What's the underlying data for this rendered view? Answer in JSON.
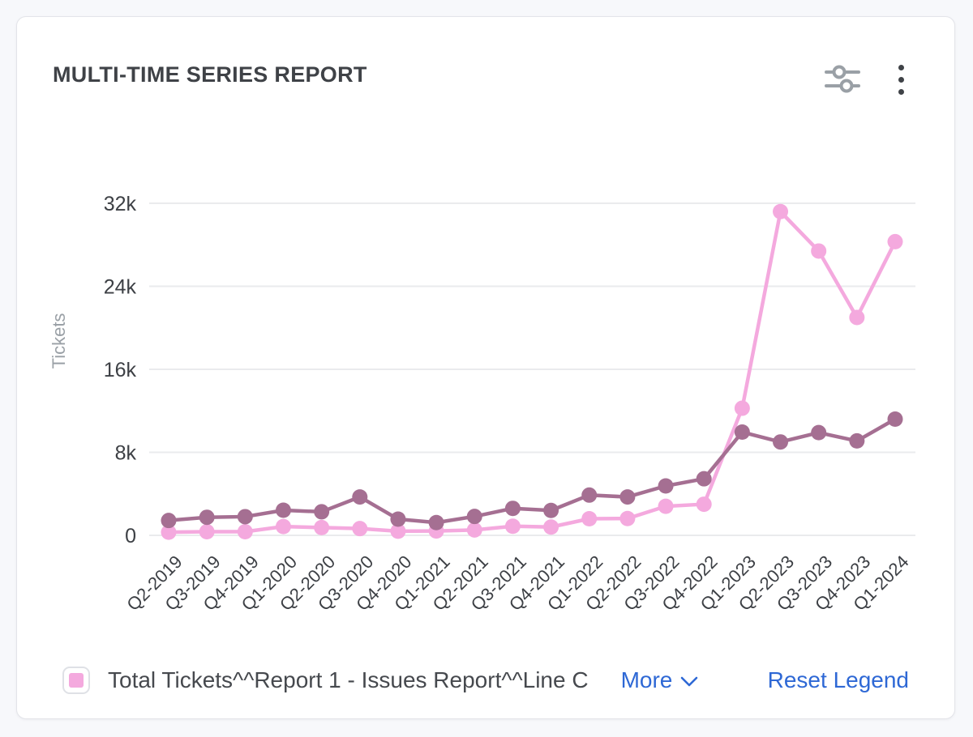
{
  "card": {
    "title": "MULTI-TIME SERIES REPORT"
  },
  "legend": {
    "items": [
      {
        "label": "Total Tickets^^Report 1 - Issues Report^^Line C",
        "swatch_color": "#f4a9de"
      }
    ],
    "more_label": "More",
    "reset_label": "Reset Legend",
    "link_color": "#2e68d5"
  },
  "chart_data": {
    "type": "line",
    "title": "MULTI-TIME SERIES REPORT",
    "xlabel": "",
    "ylabel": "Tickets",
    "ylim": [
      0,
      32000
    ],
    "grid": true,
    "legend_position": "bottom",
    "yticks": [
      {
        "value": 0,
        "label": "0"
      },
      {
        "value": 8000,
        "label": "8k"
      },
      {
        "value": 16000,
        "label": "16k"
      },
      {
        "value": 24000,
        "label": "24k"
      },
      {
        "value": 32000,
        "label": "32k"
      }
    ],
    "categories": [
      "Q2-2019",
      "Q3-2019",
      "Q4-2019",
      "Q1-2020",
      "Q2-2020",
      "Q3-2020",
      "Q4-2020",
      "Q1-2021",
      "Q2-2021",
      "Q3-2021",
      "Q4-2021",
      "Q1-2022",
      "Q2-2022",
      "Q3-2022",
      "Q4-2022",
      "Q1-2023",
      "Q2-2023",
      "Q3-2023",
      "Q4-2023",
      "Q1-2024"
    ],
    "series": [
      {
        "name": "Total Tickets^^Report 1 - Issues Report^^Line C",
        "color": "#f4a9de",
        "values": [
          300,
          350,
          350,
          850,
          750,
          650,
          400,
          420,
          520,
          880,
          800,
          1600,
          1620,
          2800,
          3000,
          12250,
          31200,
          27400,
          21000,
          28300
        ]
      },
      {
        "name": "",
        "color": "#a56f92",
        "values": [
          1430,
          1740,
          1800,
          2420,
          2270,
          3700,
          1560,
          1230,
          1820,
          2600,
          2400,
          3880,
          3700,
          4760,
          5450,
          9950,
          9000,
          9900,
          9100,
          11200
        ]
      }
    ]
  }
}
